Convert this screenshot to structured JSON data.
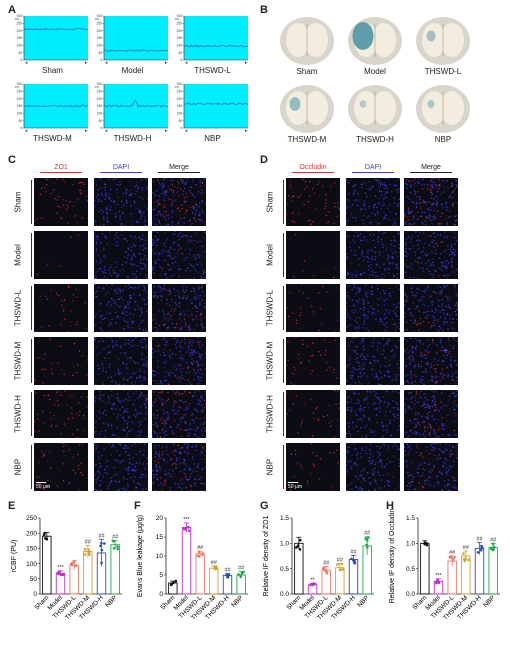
{
  "panel_labels": {
    "a": "A",
    "b": "B",
    "c": "C",
    "d": "D",
    "e": "E",
    "f": "F",
    "g": "G",
    "h": "H"
  },
  "ldf": {
    "unit": "PU",
    "ticks": [
      "300",
      "250",
      "200",
      "150",
      "100",
      "50",
      "0"
    ],
    "traces": [
      {
        "label": "Sham",
        "level": 210
      },
      {
        "label": "Model",
        "level": 65
      },
      {
        "label": "THSWD-L",
        "level": 95
      },
      {
        "label": "THSWD-M",
        "level": 150
      },
      {
        "label": "THSWD-H",
        "level": 150
      },
      {
        "label": "NBP",
        "level": 165
      }
    ],
    "fill_color": "#00eefe",
    "trace_color": "#3355bb"
  },
  "brains": [
    {
      "label": "Sham"
    },
    {
      "label": "Model"
    },
    {
      "label": "THSWD-L"
    },
    {
      "label": "THSWD-M"
    },
    {
      "label": "THSWD-H"
    },
    {
      "label": "NBP"
    }
  ],
  "if_c": {
    "columns": [
      "ZO1",
      "DAPI",
      "Merge"
    ],
    "column_colors": [
      "#e0302a",
      "#3b3bd6",
      "#222222"
    ],
    "rows": [
      "Sham",
      "Model",
      "THSWD-L",
      "THSWD-M",
      "THSWD-H",
      "NBP"
    ],
    "scalebar": "50 μm"
  },
  "if_d": {
    "columns": [
      "Occludin",
      "DAPI",
      "Merge"
    ],
    "column_colors": [
      "#e0302a",
      "#3b3bd6",
      "#222222"
    ],
    "rows": [
      "Sham",
      "Model",
      "THSWD-L",
      "THSWD-M",
      "THSWD-H",
      "NBP"
    ],
    "scalebar": "50 μm"
  },
  "chart_data": [
    {
      "type": "bar",
      "panel": "E",
      "ylabel": "rCBF (PU)",
      "ylim": [
        0,
        250
      ],
      "yticks": [
        "0",
        "50",
        "100",
        "150",
        "200",
        "250"
      ],
      "categories": [
        "Sham",
        "Model",
        "THSWD-L",
        "THSWD-M",
        "THSWD-H",
        "NBP"
      ],
      "values": [
        190,
        68,
        95,
        140,
        135,
        162
      ],
      "errors": [
        12,
        8,
        15,
        20,
        45,
        14
      ],
      "annotations": [
        "",
        "***",
        "",
        "##",
        "##",
        "##"
      ],
      "colors": [
        "#111111",
        "#c030c8",
        "#f07860",
        "#d4a030",
        "#2848c8",
        "#20a848"
      ]
    },
    {
      "type": "bar",
      "panel": "F",
      "ylabel": "Evans Blue leakage (μg/g)",
      "ylim": [
        0,
        20
      ],
      "yticks": [
        "0",
        "5",
        "10",
        "15",
        "20"
      ],
      "categories": [
        "Sham",
        "Model",
        "THSWD-L",
        "THSWD-M",
        "THSWD-H",
        "NBP"
      ],
      "values": [
        2.9,
        17.5,
        10.6,
        6.8,
        4.9,
        5.0
      ],
      "errors": [
        0.5,
        1.2,
        0.7,
        0.6,
        0.5,
        0.9
      ],
      "annotations": [
        "",
        "***",
        "##",
        "##",
        "##",
        "##"
      ],
      "colors": [
        "#111111",
        "#c030c8",
        "#f07860",
        "#d4a030",
        "#2848c8",
        "#20a848"
      ]
    },
    {
      "type": "bar",
      "panel": "G",
      "ylabel": "Relative IF density of ZO1",
      "ylim": [
        0,
        1.5
      ],
      "yticks": [
        "0.0",
        "0.5",
        "1.0",
        "1.5"
      ],
      "categories": [
        "Sham",
        "Model",
        "THSWD-L",
        "THSWD-M",
        "THSWD-H",
        "NBP"
      ],
      "values": [
        1.0,
        0.18,
        0.47,
        0.52,
        0.68,
        0.95
      ],
      "errors": [
        0.12,
        0.03,
        0.07,
        0.08,
        0.08,
        0.18
      ],
      "annotations": [
        "",
        "**",
        "##",
        "##",
        "##",
        "##"
      ],
      "colors": [
        "#111111",
        "#c030c8",
        "#f07860",
        "#d4a030",
        "#2848c8",
        "#20a848"
      ]
    },
    {
      "type": "bar",
      "panel": "H",
      "ylabel": "Relative IF density of Occludin",
      "ylim": [
        0,
        1.5
      ],
      "yticks": [
        "0.0",
        "0.5",
        "1.0",
        "1.5"
      ],
      "categories": [
        "Sham",
        "Model",
        "THSWD-L",
        "THSWD-M",
        "THSWD-H",
        "NBP"
      ],
      "values": [
        1.0,
        0.25,
        0.65,
        0.75,
        0.9,
        0.92
      ],
      "errors": [
        0.05,
        0.05,
        0.1,
        0.1,
        0.12,
        0.08
      ],
      "annotations": [
        "",
        "***",
        "##",
        "##",
        "##",
        "##"
      ],
      "colors": [
        "#111111",
        "#c030c8",
        "#f07860",
        "#d4a030",
        "#2848c8",
        "#20a848"
      ]
    }
  ]
}
